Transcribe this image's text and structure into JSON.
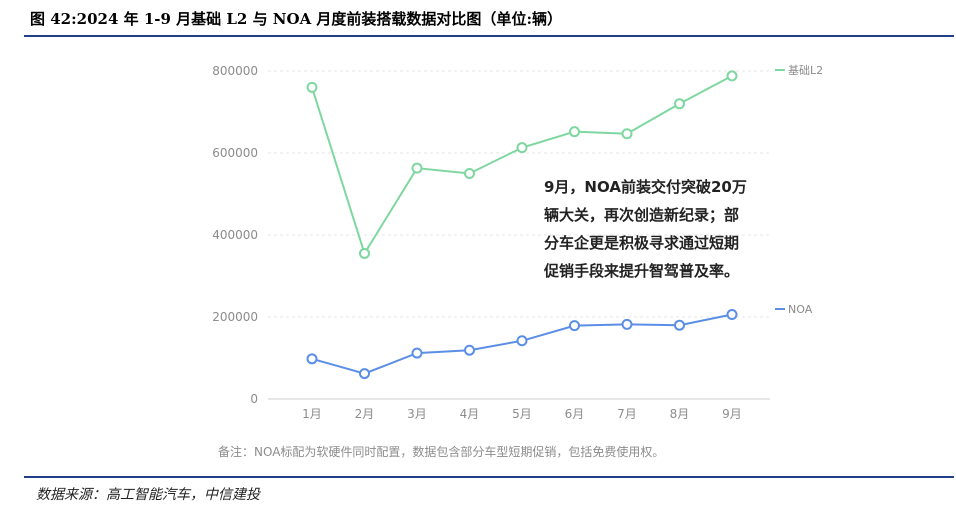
{
  "title": "图 42:2024 年 1-9 月基础 L2 与 NOA 月度前装搭载数据对比图（单位:辆）",
  "source": "数据来源：高工智能汽车，中信建投",
  "chart_data": {
    "type": "line",
    "categories": [
      "1月",
      "2月",
      "3月",
      "4月",
      "5月",
      "6月",
      "7月",
      "8月",
      "9月"
    ],
    "series": [
      {
        "name": "基础L2",
        "color": "#7fd7a0",
        "values": [
          760000,
          355000,
          563000,
          550000,
          613000,
          652000,
          647000,
          720000,
          788000
        ]
      },
      {
        "name": "NOA",
        "color": "#5b8ee6",
        "values": [
          98000,
          62000,
          112000,
          119000,
          142000,
          179000,
          182000,
          180000,
          206000
        ]
      }
    ],
    "y_ticks": [
      "800000",
      "600000",
      "400000",
      "200000",
      "0"
    ],
    "y_tick_values": [
      800000,
      600000,
      400000,
      200000,
      0
    ],
    "ylim": [
      0,
      800000
    ],
    "grid": true,
    "legend": "right",
    "annotation": [
      "9月，NOA前装交付突破20万",
      "辆大关，再次创造新纪录；部",
      "分车企更是积极寻求通过短期",
      "促销手段来提升智驾普及率。"
    ],
    "note": "备注：NOA标配为软硬件同时配置，数据包含部分车型短期促销，包括免费使用权。"
  }
}
